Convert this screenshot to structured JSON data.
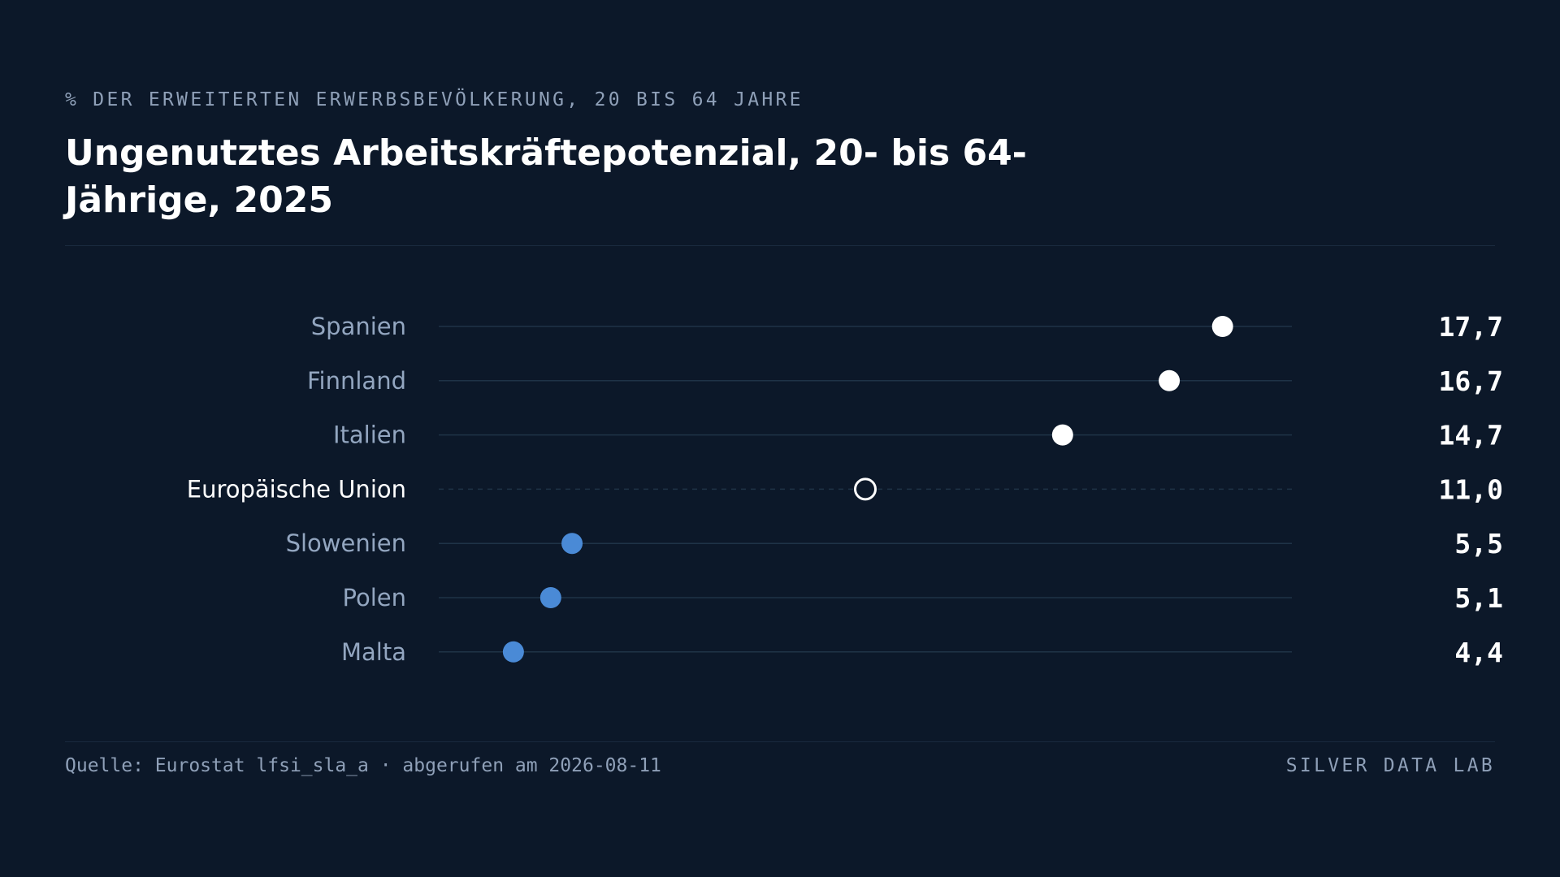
{
  "header": {
    "eyebrow": "% DER ERWEITERTEN ERWERBSBEVÖLKERUNG, 20 BIS 64 JAHRE",
    "title": "Ungenutztes Arbeitskräftepotenzial, 20- bis 64-Jährige, 2025"
  },
  "footer": {
    "source": "Quelle: Eurostat lfsi_sla_a · abgerufen am 2026-08-11",
    "brand": "SILVER DATA LAB"
  },
  "colors": {
    "background": "#0c1829",
    "high": "#ffffff",
    "low": "#4a8ad6",
    "reference": "#ffffff",
    "track": "#1f3347",
    "label": "#93a6c0"
  },
  "chart_data": {
    "type": "scatter",
    "subtype": "dot-plot",
    "categories": [
      "Spanien",
      "Finnland",
      "Italien",
      "Europäische Union",
      "Slowenien",
      "Polen",
      "Malta"
    ],
    "values": [
      17.7,
      16.7,
      14.7,
      11.0,
      5.5,
      5.1,
      4.4
    ],
    "value_labels": [
      "17,7",
      "16,7",
      "14,7",
      "11,0",
      "5,5",
      "5,1",
      "4,4"
    ],
    "reference_category": "Europäische Union",
    "xlim": [
      3.0,
      19.0
    ],
    "grid": false,
    "legend": "none"
  }
}
